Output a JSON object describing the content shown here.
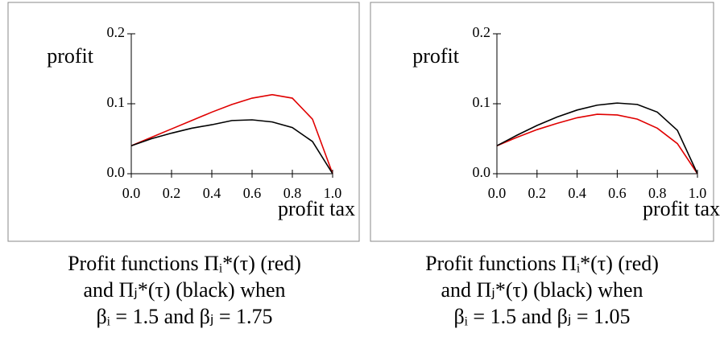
{
  "chart_data": [
    {
      "type": "line",
      "xlabel": "profit tax",
      "ylabel": "profit",
      "x": [
        0,
        0.1,
        0.2,
        0.3,
        0.4,
        0.5,
        0.6,
        0.7,
        0.8,
        0.9,
        1
      ],
      "series": [
        {
          "color": "#e00000",
          "values": [
            0.04,
            0.052,
            0.064,
            0.076,
            0.088,
            0.099,
            0.108,
            0.113,
            0.108,
            0.078,
            0.0
          ]
        },
        {
          "color": "#000000",
          "values": [
            0.04,
            0.05,
            0.058,
            0.065,
            0.07,
            0.076,
            0.077,
            0.074,
            0.066,
            0.046,
            0.0
          ]
        }
      ],
      "xlim": [
        0,
        1
      ],
      "ylim": [
        0,
        0.2
      ],
      "xticks": [
        {
          "value": 0,
          "label": "0.0"
        },
        0.2,
        0.4,
        0.6,
        0.8,
        {
          "value": 1,
          "label": "1.0"
        }
      ],
      "yticks": [
        {
          "value": 0,
          "label": "0.0"
        },
        0.1,
        0.2
      ],
      "caption": [
        "Profit functions Πᵢ*(τ) (red)",
        "and Πⱼ*(τ) (black) when",
        "βᵢ = 1.5 and βⱼ = 1.75"
      ]
    },
    {
      "type": "line",
      "xlabel": "profit tax",
      "ylabel": "profit",
      "x": [
        0,
        0.1,
        0.2,
        0.3,
        0.4,
        0.5,
        0.6,
        0.7,
        0.8,
        0.9,
        1
      ],
      "series": [
        {
          "color": "#e00000",
          "values": [
            0.04,
            0.052,
            0.063,
            0.072,
            0.08,
            0.085,
            0.084,
            0.078,
            0.065,
            0.043,
            0.0
          ]
        },
        {
          "color": "#000000",
          "values": [
            0.04,
            0.055,
            0.069,
            0.081,
            0.091,
            0.098,
            0.101,
            0.099,
            0.088,
            0.062,
            0.0
          ]
        }
      ],
      "xlim": [
        0,
        1
      ],
      "ylim": [
        0,
        0.2
      ],
      "xticks": [
        {
          "value": 0,
          "label": "0.0"
        },
        0.2,
        0.4,
        0.6,
        0.8,
        {
          "value": 1,
          "label": "1.0"
        }
      ],
      "yticks": [
        {
          "value": 0,
          "label": "0.0"
        },
        0.1,
        0.2
      ],
      "caption": [
        "Profit functions Πᵢ*(τ) (red)",
        "and Πⱼ*(τ) (black) when",
        "βᵢ = 1.5 and βⱼ = 1.05"
      ]
    }
  ]
}
